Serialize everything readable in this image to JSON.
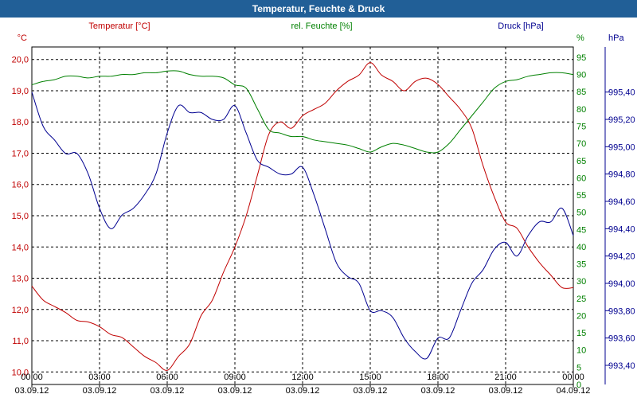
{
  "window": {
    "title": "Temperatur, Feuchte & Druck"
  },
  "chart_data": {
    "type": "line",
    "title": "Temperatur, Feuchte & Druck",
    "x_ticks": [
      {
        "time": "00:00",
        "date": "03.09.12",
        "h": 0
      },
      {
        "time": "03:00",
        "date": "03.09.12",
        "h": 3
      },
      {
        "time": "06:00",
        "date": "03.09.12",
        "h": 6
      },
      {
        "time": "09:00",
        "date": "03.09.12",
        "h": 9
      },
      {
        "time": "12:00",
        "date": "03.09.12",
        "h": 12
      },
      {
        "time": "15:00",
        "date": "03.09.12",
        "h": 15
      },
      {
        "time": "18:00",
        "date": "03.09.12",
        "h": 18
      },
      {
        "time": "21:00",
        "date": "03.09.12",
        "h": 21
      },
      {
        "time": "00:00",
        "date": "04.09.12",
        "h": 24
      }
    ],
    "xlim": [
      0,
      24
    ],
    "axes": {
      "temp": {
        "label": "Temperatur [°C]",
        "unit": "°C",
        "min": 9.6,
        "max": 20.4,
        "color": "#c00000",
        "ticks": [
          "10,0",
          "11,0",
          "12,0",
          "13,0",
          "14,0",
          "15,0",
          "16,0",
          "17,0",
          "18,0",
          "19,0",
          "20,0"
        ]
      },
      "hum": {
        "label": "rel. Feuchte [%]",
        "unit": "%",
        "min": 0,
        "max": 98,
        "color": "#008000",
        "ticks": [
          "0",
          "5",
          "10",
          "15",
          "20",
          "25",
          "30",
          "35",
          "40",
          "45",
          "50",
          "55",
          "60",
          "65",
          "70",
          "75",
          "80",
          "85",
          "90",
          "95"
        ]
      },
      "press": {
        "label": "Druck [hPa]",
        "unit": "hPa",
        "min": 993.26,
        "max": 995.73,
        "color": "#000090",
        "ticks": [
          "993,40",
          "993,60",
          "993,80",
          "994,00",
          "994,20",
          "994,40",
          "994,60",
          "994,80",
          "995,00",
          "995,20",
          "995,40"
        ]
      }
    },
    "series": [
      {
        "name": "Temperatur",
        "axis": "temp",
        "color": "#c00000",
        "points": [
          [
            0,
            12.75
          ],
          [
            0.5,
            12.3
          ],
          [
            1,
            12.1
          ],
          [
            1.5,
            11.9
          ],
          [
            2,
            11.65
          ],
          [
            2.5,
            11.6
          ],
          [
            3,
            11.45
          ],
          [
            3.5,
            11.2
          ],
          [
            4,
            11.1
          ],
          [
            4.5,
            10.8
          ],
          [
            5,
            10.5
          ],
          [
            5.5,
            10.3
          ],
          [
            6,
            10.05
          ],
          [
            6.5,
            10.5
          ],
          [
            7,
            10.9
          ],
          [
            7.5,
            11.8
          ],
          [
            8,
            12.3
          ],
          [
            8.5,
            13.2
          ],
          [
            9,
            14.0
          ],
          [
            9.5,
            15.0
          ],
          [
            10,
            16.3
          ],
          [
            10.5,
            17.6
          ],
          [
            11,
            18.0
          ],
          [
            11.5,
            17.8
          ],
          [
            12,
            18.2
          ],
          [
            12.5,
            18.4
          ],
          [
            13,
            18.6
          ],
          [
            13.5,
            19.0
          ],
          [
            14,
            19.3
          ],
          [
            14.5,
            19.5
          ],
          [
            15,
            19.9
          ],
          [
            15.5,
            19.5
          ],
          [
            16,
            19.3
          ],
          [
            16.5,
            19.0
          ],
          [
            17,
            19.3
          ],
          [
            17.5,
            19.4
          ],
          [
            18,
            19.2
          ],
          [
            18.5,
            18.8
          ],
          [
            19,
            18.4
          ],
          [
            19.5,
            17.8
          ],
          [
            20,
            16.6
          ],
          [
            20.5,
            15.6
          ],
          [
            21,
            14.8
          ],
          [
            21.5,
            14.6
          ],
          [
            22,
            14.0
          ],
          [
            22.5,
            13.5
          ],
          [
            23,
            13.1
          ],
          [
            23.5,
            12.7
          ],
          [
            24,
            12.7
          ]
        ]
      },
      {
        "name": "rel. Feuchte",
        "axis": "hum",
        "color": "#008000",
        "points": [
          [
            0,
            87
          ],
          [
            0.5,
            88
          ],
          [
            1,
            88.5
          ],
          [
            1.5,
            89.5
          ],
          [
            2,
            89.5
          ],
          [
            2.5,
            89
          ],
          [
            3,
            89.5
          ],
          [
            3.5,
            89.5
          ],
          [
            4,
            90
          ],
          [
            4.5,
            90
          ],
          [
            5,
            90.5
          ],
          [
            5.5,
            90.5
          ],
          [
            6,
            91
          ],
          [
            6.5,
            91
          ],
          [
            7,
            90
          ],
          [
            7.5,
            89.5
          ],
          [
            8,
            89.5
          ],
          [
            8.5,
            89
          ],
          [
            9,
            87
          ],
          [
            9.5,
            86
          ],
          [
            10,
            80
          ],
          [
            10.5,
            74
          ],
          [
            11,
            73
          ],
          [
            11.5,
            72
          ],
          [
            12,
            72
          ],
          [
            12.5,
            71
          ],
          [
            13,
            70.5
          ],
          [
            13.5,
            70
          ],
          [
            14,
            69.5
          ],
          [
            14.5,
            68.5
          ],
          [
            15,
            67.5
          ],
          [
            15.5,
            69
          ],
          [
            16,
            70
          ],
          [
            16.5,
            69.5
          ],
          [
            17,
            68.5
          ],
          [
            17.5,
            67.5
          ],
          [
            18,
            67.5
          ],
          [
            18.5,
            70
          ],
          [
            19,
            74
          ],
          [
            19.5,
            78
          ],
          [
            20,
            82
          ],
          [
            20.5,
            86
          ],
          [
            21,
            88
          ],
          [
            21.5,
            88.5
          ],
          [
            22,
            89.5
          ],
          [
            22.5,
            90
          ],
          [
            23,
            90.5
          ],
          [
            23.5,
            90.5
          ],
          [
            24,
            90
          ]
        ]
      },
      {
        "name": "Druck",
        "axis": "press",
        "color": "#000090",
        "points": [
          [
            0,
            995.4
          ],
          [
            0.5,
            995.15
          ],
          [
            1,
            995.05
          ],
          [
            1.5,
            994.95
          ],
          [
            2,
            994.95
          ],
          [
            2.5,
            994.8
          ],
          [
            3,
            994.55
          ],
          [
            3.5,
            994.4
          ],
          [
            4,
            994.5
          ],
          [
            4.5,
            994.55
          ],
          [
            5,
            994.65
          ],
          [
            5.5,
            994.8
          ],
          [
            6,
            995.1
          ],
          [
            6.5,
            995.3
          ],
          [
            7,
            995.25
          ],
          [
            7.5,
            995.25
          ],
          [
            8,
            995.2
          ],
          [
            8.5,
            995.2
          ],
          [
            9,
            995.3
          ],
          [
            9.5,
            995.1
          ],
          [
            10,
            994.9
          ],
          [
            10.5,
            994.85
          ],
          [
            11,
            994.8
          ],
          [
            11.5,
            994.8
          ],
          [
            12,
            994.85
          ],
          [
            12.5,
            994.65
          ],
          [
            13,
            994.4
          ],
          [
            13.5,
            994.15
          ],
          [
            14,
            994.05
          ],
          [
            14.5,
            994.0
          ],
          [
            15,
            993.8
          ],
          [
            15.5,
            993.8
          ],
          [
            16,
            993.75
          ],
          [
            16.5,
            993.6
          ],
          [
            17,
            993.5
          ],
          [
            17.5,
            993.45
          ],
          [
            18,
            993.6
          ],
          [
            18.5,
            993.6
          ],
          [
            19,
            993.8
          ],
          [
            19.5,
            994.0
          ],
          [
            20,
            994.1
          ],
          [
            20.5,
            994.25
          ],
          [
            21,
            994.3
          ],
          [
            21.5,
            994.2
          ],
          [
            22,
            994.35
          ],
          [
            22.5,
            994.45
          ],
          [
            23,
            994.45
          ],
          [
            23.5,
            994.55
          ],
          [
            24,
            994.35
          ]
        ]
      }
    ]
  }
}
